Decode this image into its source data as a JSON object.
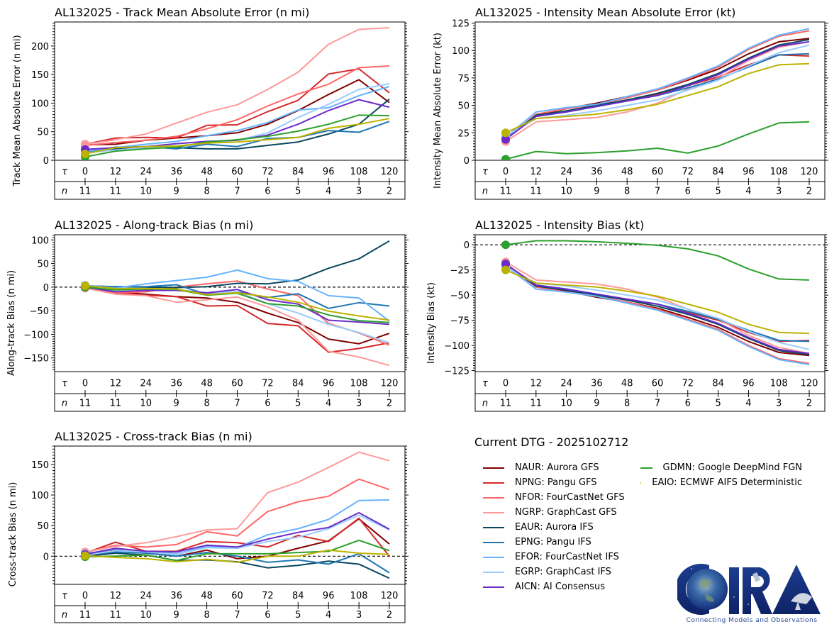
{
  "dtg_title": "Current DTG - 2025102712",
  "logo": {
    "text": "CIRA",
    "tagline": "Connecting Models and Observations"
  },
  "tau_label": "τ",
  "n_label": "n",
  "models": [
    {
      "id": "NAUR",
      "label": "NAUR: Aurora GFS",
      "color": "#800000"
    },
    {
      "id": "NPNG",
      "label": "NPNG: Pangu GFS",
      "color": "#d62728"
    },
    {
      "id": "NFOR",
      "label": "NFOR: FourCastNet GFS",
      "color": "#ff6666"
    },
    {
      "id": "NGRP",
      "label": "NGRP: GraphCast GFS",
      "color": "#ff9999"
    },
    {
      "id": "EAUR",
      "label": "EAUR: Aurora IFS",
      "color": "#08475e"
    },
    {
      "id": "EPNG",
      "label": "EPNG: Pangu IFS",
      "color": "#1f77b4"
    },
    {
      "id": "EFOR",
      "label": "EFOR: FourCastNet IFS",
      "color": "#66b3ff"
    },
    {
      "id": "EGRP",
      "label": "EGRP: GraphCast IFS",
      "color": "#99ccff"
    },
    {
      "id": "AICN",
      "label": "AICN: AI Consensus",
      "color": "#6a2bc8"
    },
    {
      "id": "GDMN",
      "label": "GDMN: Google DeepMind FGN",
      "color": "#2ca02c"
    },
    {
      "id": "EAIO",
      "label": "EAIO: ECMWF AIFS Deterministic",
      "color": "#bcb200"
    }
  ],
  "chart_data": [
    {
      "type": "line",
      "title": "AL132025 - Track Mean Absolute Error (n mi)",
      "xlabel": "τ",
      "ylabel": "Track Mean Absolute Error (n mi)",
      "x": [
        0,
        12,
        24,
        36,
        48,
        60,
        72,
        84,
        96,
        108,
        120
      ],
      "n": [
        11,
        11,
        10,
        9,
        8,
        7,
        6,
        5,
        4,
        3,
        2
      ],
      "ylim": [
        0,
        242
      ],
      "yticks": [
        0,
        50,
        100,
        150,
        200
      ],
      "zero_line": false,
      "series": [
        {
          "name": "NAUR",
          "values": [
            27,
            28,
            35,
            39,
            43,
            48,
            63,
            87,
            115,
            141,
            101
          ]
        },
        {
          "name": "NPNG",
          "values": [
            28,
            39,
            40,
            39,
            61,
            62,
            85,
            105,
            151,
            160,
            118
          ]
        },
        {
          "name": "NFOR",
          "values": [
            26,
            31,
            35,
            42,
            55,
            71,
            95,
            116,
            133,
            162,
            165
          ]
        },
        {
          "name": "NGRP",
          "values": [
            28,
            36,
            46,
            65,
            84,
            97,
            124,
            154,
            203,
            229,
            232
          ]
        },
        {
          "name": "EAUR",
          "values": [
            15,
            20,
            22,
            22,
            20,
            20,
            26,
            32,
            46,
            63,
            107
          ]
        },
        {
          "name": "EPNG",
          "values": [
            14,
            23,
            24,
            20,
            28,
            24,
            38,
            40,
            52,
            49,
            68
          ]
        },
        {
          "name": "EFOR",
          "values": [
            16,
            22,
            28,
            33,
            43,
            52,
            66,
            88,
            92,
            113,
            129
          ]
        },
        {
          "name": "EGRP",
          "values": [
            13,
            18,
            22,
            24,
            30,
            35,
            48,
            75,
            98,
            124,
            134
          ]
        },
        {
          "name": "AICN",
          "values": [
            19,
            22,
            24,
            29,
            33,
            35,
            44,
            63,
            87,
            106,
            93
          ]
        },
        {
          "name": "GDMN",
          "values": [
            6,
            16,
            20,
            23,
            32,
            36,
            42,
            51,
            63,
            79,
            78
          ]
        },
        {
          "name": "EAIO",
          "values": [
            11,
            22,
            24,
            25,
            30,
            32,
            36,
            40,
            56,
            63,
            73
          ]
        }
      ]
    },
    {
      "type": "line",
      "title": "AL132025 - Intensity Mean Absolute Error (kt)",
      "xlabel": "τ",
      "ylabel": "Intensity Mean Absolute Error (kt)",
      "x": [
        0,
        12,
        24,
        36,
        48,
        60,
        72,
        84,
        96,
        108,
        120
      ],
      "n": [
        11,
        11,
        10,
        9,
        8,
        7,
        6,
        5,
        4,
        3,
        2
      ],
      "ylim": [
        0,
        126
      ],
      "yticks": [
        0,
        25,
        50,
        75,
        100,
        125
      ],
      "zero_line": false,
      "series": [
        {
          "name": "NAUR",
          "values": [
            20,
            41,
            47,
            52,
            58,
            64,
            73,
            83,
            97,
            108,
            111
          ]
        },
        {
          "name": "NPNG",
          "values": [
            19,
            40,
            45,
            50,
            55,
            60,
            68,
            76,
            87,
            96,
            95
          ]
        },
        {
          "name": "NFOR",
          "values": [
            19,
            42,
            47,
            51,
            57,
            64,
            74,
            85,
            101,
            113,
            118
          ]
        },
        {
          "name": "NGRP",
          "values": [
            17,
            35,
            37,
            39,
            44,
            52,
            65,
            75,
            91,
            103,
            108
          ]
        },
        {
          "name": "EAUR",
          "values": [
            20,
            41,
            45,
            50,
            55,
            61,
            69,
            79,
            93,
            105,
            110
          ]
        },
        {
          "name": "EPNG",
          "values": [
            20,
            40,
            44,
            49,
            54,
            59,
            66,
            74,
            85,
            96,
            97
          ]
        },
        {
          "name": "EFOR",
          "values": [
            21,
            44,
            48,
            51,
            58,
            65,
            75,
            86,
            102,
            114,
            120
          ]
        },
        {
          "name": "EGRP",
          "values": [
            22,
            38,
            41,
            45,
            50,
            55,
            64,
            73,
            86,
            98,
            105
          ]
        },
        {
          "name": "AICN",
          "values": [
            19,
            40,
            44,
            49,
            54,
            59,
            68,
            78,
            92,
            104,
            108
          ]
        },
        {
          "name": "GDMN",
          "values": [
            1,
            8,
            6,
            7,
            8.5,
            11,
            6.5,
            13,
            24,
            34,
            35
          ]
        },
        {
          "name": "EAIO",
          "values": [
            25,
            38,
            40,
            42,
            46,
            51,
            59,
            67,
            79,
            87,
            88
          ]
        }
      ]
    },
    {
      "type": "line",
      "title": "AL132025 - Along-track Bias (n mi)",
      "xlabel": "τ",
      "ylabel": "Along-track Bias (n mi)",
      "x": [
        0,
        12,
        24,
        36,
        48,
        60,
        72,
        84,
        96,
        108,
        120
      ],
      "n": [
        11,
        11,
        10,
        9,
        8,
        7,
        6,
        5,
        4,
        3,
        2
      ],
      "ylim": [
        -179,
        111
      ],
      "yticks": [
        -150,
        -100,
        -50,
        0,
        50,
        100
      ],
      "zero_line": true,
      "series": [
        {
          "name": "NAUR",
          "values": [
            0,
            -10,
            -15,
            -20,
            -23,
            -32,
            -55,
            -75,
            -110,
            -120,
            -98
          ]
        },
        {
          "name": "NPNG",
          "values": [
            0,
            -12,
            -17,
            -20,
            -40,
            -39,
            -77,
            -82,
            -138,
            -130,
            -118
          ]
        },
        {
          "name": "NFOR",
          "values": [
            -2,
            -12,
            -10,
            0,
            7,
            13,
            -4,
            -18,
            -77,
            -97,
            -123
          ]
        },
        {
          "name": "NGRP",
          "values": [
            -2,
            -15,
            -18,
            -32,
            -27,
            -21,
            -42,
            -70,
            -136,
            -148,
            -166
          ]
        },
        {
          "name": "EAUR",
          "values": [
            2,
            1,
            0,
            -1,
            1,
            8,
            7,
            15,
            40,
            60,
            98
          ]
        },
        {
          "name": "EPNG",
          "values": [
            3,
            1,
            1,
            5,
            -15,
            -10,
            -22,
            -14,
            -45,
            -33,
            -40
          ]
        },
        {
          "name": "EFOR",
          "values": [
            4,
            -2,
            7,
            14,
            21,
            36,
            18,
            12,
            -18,
            -23,
            -72
          ]
        },
        {
          "name": "EGRP",
          "values": [
            0,
            -6,
            -4,
            -5,
            -12,
            -10,
            -35,
            -55,
            -79,
            -96,
            -118
          ]
        },
        {
          "name": "AICN",
          "values": [
            0,
            -10,
            -7,
            -7,
            -12,
            -5,
            -27,
            -36,
            -70,
            -74,
            -79
          ]
        },
        {
          "name": "GDMN",
          "values": [
            0,
            -6,
            -4,
            -5,
            -17,
            -13,
            -35,
            -40,
            -59,
            -71,
            -75
          ]
        },
        {
          "name": "EAIO",
          "values": [
            3,
            -3,
            -3,
            -4,
            -16,
            -12,
            -21,
            -32,
            -51,
            -61,
            -70
          ]
        }
      ]
    },
    {
      "type": "line",
      "title": "AL132025 - Intensity Bias (kt)",
      "xlabel": "τ",
      "ylabel": "Intensity Bias (kt)",
      "x": [
        0,
        12,
        24,
        36,
        48,
        60,
        72,
        84,
        96,
        108,
        120
      ],
      "n": [
        11,
        11,
        10,
        9,
        8,
        7,
        6,
        5,
        4,
        3,
        2
      ],
      "ylim": [
        -126,
        10
      ],
      "yticks": [
        -125,
        -100,
        -75,
        -50,
        -25,
        0
      ],
      "zero_line": true,
      "series": [
        {
          "name": "NAUR",
          "values": [
            -20,
            -40,
            -46,
            -52,
            -57,
            -63,
            -72,
            -82,
            -96,
            -107,
            -110
          ]
        },
        {
          "name": "NPNG",
          "values": [
            -19,
            -40,
            -45,
            -50,
            -55,
            -59,
            -67,
            -75,
            -87,
            -96,
            -95
          ]
        },
        {
          "name": "NFOR",
          "values": [
            -19,
            -42,
            -47,
            -51,
            -57,
            -64,
            -74,
            -84,
            -100,
            -113,
            -118
          ]
        },
        {
          "name": "NGRP",
          "values": [
            -17,
            -35,
            -37,
            -39,
            -44,
            -52,
            -64,
            -74,
            -90,
            -102,
            -108
          ]
        },
        {
          "name": "EAUR",
          "values": [
            -20,
            -41,
            -45,
            -50,
            -55,
            -61,
            -69,
            -79,
            -93,
            -105,
            -109
          ]
        },
        {
          "name": "EPNG",
          "values": [
            -20,
            -40,
            -44,
            -49,
            -54,
            -59,
            -66,
            -74,
            -85,
            -95,
            -96
          ]
        },
        {
          "name": "EFOR",
          "values": [
            -21,
            -44,
            -47,
            -51,
            -58,
            -65,
            -75,
            -85,
            -101,
            -114,
            -119
          ]
        },
        {
          "name": "EGRP",
          "values": [
            -22,
            -38,
            -41,
            -45,
            -50,
            -55,
            -64,
            -73,
            -86,
            -97,
            -104
          ]
        },
        {
          "name": "AICN",
          "values": [
            -19,
            -40,
            -44,
            -49,
            -54,
            -59,
            -68,
            -78,
            -92,
            -104,
            -108
          ]
        },
        {
          "name": "GDMN",
          "values": [
            0,
            4,
            4,
            3,
            1.5,
            -0.5,
            -4,
            -11,
            -24,
            -34,
            -35
          ]
        },
        {
          "name": "EAIO",
          "values": [
            -25,
            -38,
            -40,
            -42,
            -46,
            -51,
            -59,
            -67,
            -79,
            -87,
            -88
          ]
        }
      ]
    },
    {
      "type": "line",
      "title": "AL132025 - Cross-track Bias (n mi)",
      "xlabel": "τ",
      "ylabel": "Cross-track Bias (n mi)",
      "x": [
        0,
        12,
        24,
        36,
        48,
        60,
        72,
        84,
        96,
        108,
        120
      ],
      "n": [
        11,
        11,
        10,
        9,
        8,
        7,
        6,
        5,
        4,
        3,
        2
      ],
      "ylim": [
        -46,
        180
      ],
      "yticks": [
        0,
        50,
        100,
        150
      ],
      "zero_line": true,
      "series": [
        {
          "name": "NAUR",
          "values": [
            3,
            10,
            5,
            0,
            10,
            -4,
            0,
            13,
            25,
            61,
            20
          ]
        },
        {
          "name": "NPNG",
          "values": [
            5,
            23,
            8,
            8,
            24,
            22,
            15,
            34,
            24,
            62,
            0
          ]
        },
        {
          "name": "NFOR",
          "values": [
            6,
            18,
            15,
            19,
            40,
            33,
            73,
            89,
            98,
            126,
            109
          ]
        },
        {
          "name": "NGRP",
          "values": [
            7,
            16,
            22,
            32,
            43,
            45,
            104,
            121,
            145,
            170,
            156
          ]
        },
        {
          "name": "EAUR",
          "values": [
            0,
            5,
            2,
            -7,
            -6,
            -9,
            -19,
            -15,
            -8,
            -13,
            -36
          ]
        },
        {
          "name": "EPNG",
          "values": [
            2,
            7,
            5,
            0,
            6,
            0,
            -10,
            -6,
            -13,
            4,
            -27
          ]
        },
        {
          "name": "EFOR",
          "values": [
            4,
            12,
            8,
            4,
            16,
            14,
            35,
            45,
            60,
            91,
            92
          ]
        },
        {
          "name": "EGRP",
          "values": [
            2,
            9,
            7,
            3,
            14,
            13,
            24,
            31,
            45,
            67,
            43
          ]
        },
        {
          "name": "AICN",
          "values": [
            3,
            13,
            8,
            7,
            18,
            15,
            28,
            39,
            47,
            71,
            44
          ]
        },
        {
          "name": "GDMN",
          "values": [
            -1,
            0,
            2,
            -7,
            4,
            4,
            4,
            6,
            8,
            26,
            9
          ]
        },
        {
          "name": "EAIO",
          "values": [
            1,
            -2,
            -4,
            -9,
            -5,
            -10,
            0,
            0,
            10,
            5,
            3
          ]
        }
      ]
    }
  ]
}
